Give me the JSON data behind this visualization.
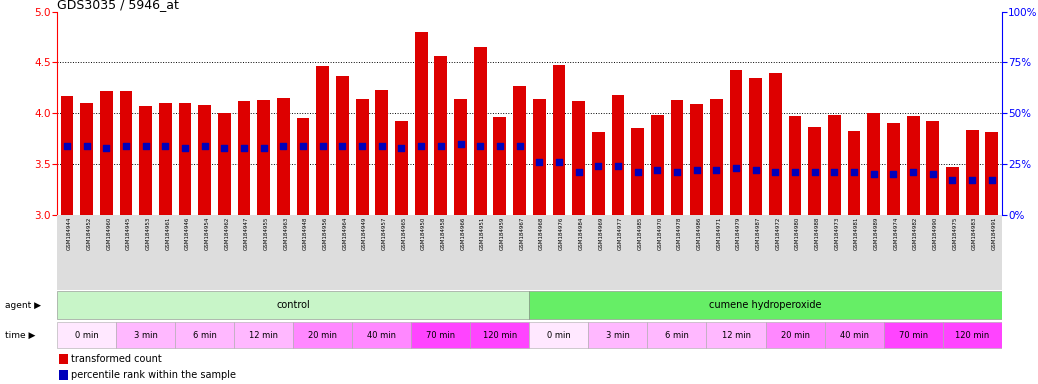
{
  "title": "GDS3035 / 5946_at",
  "ylim_left": [
    3.0,
    5.0
  ],
  "ylim_right": [
    0,
    100
  ],
  "yticks_left": [
    3.0,
    3.5,
    4.0,
    4.5,
    5.0
  ],
  "yticks_right": [
    0,
    25,
    50,
    75,
    100
  ],
  "bar_color": "#DD0000",
  "blue_color": "#0000BB",
  "background_color": "#FFFFFF",
  "samples": [
    "GSM184944",
    "GSM184952",
    "GSM184960",
    "GSM184945",
    "GSM184953",
    "GSM184961",
    "GSM184946",
    "GSM184954",
    "GSM184962",
    "GSM184947",
    "GSM184955",
    "GSM184963",
    "GSM184948",
    "GSM184956",
    "GSM184964",
    "GSM184949",
    "GSM184957",
    "GSM184965",
    "GSM184950",
    "GSM184958",
    "GSM184966",
    "GSM184951",
    "GSM184959",
    "GSM184967",
    "GSM184968",
    "GSM184976",
    "GSM184984",
    "GSM184969",
    "GSM184977",
    "GSM184985",
    "GSM184970",
    "GSM184978",
    "GSM184986",
    "GSM184971",
    "GSM184979",
    "GSM184987",
    "GSM184972",
    "GSM184980",
    "GSM184988",
    "GSM184973",
    "GSM184981",
    "GSM184989",
    "GSM184974",
    "GSM184982",
    "GSM184990",
    "GSM184975",
    "GSM184983",
    "GSM184991"
  ],
  "bar_values": [
    4.17,
    4.1,
    4.22,
    4.22,
    4.07,
    4.1,
    4.1,
    4.08,
    4.0,
    4.12,
    4.13,
    4.15,
    3.95,
    4.46,
    4.37,
    4.14,
    4.23,
    3.92,
    4.8,
    4.56,
    4.14,
    4.65,
    3.96,
    4.27,
    4.14,
    4.47,
    4.12,
    3.82,
    4.18,
    3.86,
    3.98,
    4.13,
    4.09,
    4.14,
    4.43,
    4.35,
    4.4,
    3.97,
    3.87,
    3.98,
    3.83,
    4.0,
    3.9,
    3.97,
    3.92,
    3.47,
    3.84,
    3.82
  ],
  "percentile_values": [
    34,
    34,
    33,
    34,
    34,
    34,
    33,
    34,
    33,
    33,
    33,
    34,
    34,
    34,
    34,
    34,
    34,
    33,
    34,
    34,
    35,
    34,
    34,
    34,
    26,
    26,
    21,
    24,
    24,
    21,
    22,
    21,
    22,
    22,
    23,
    22,
    21,
    21,
    21,
    21,
    21,
    20,
    20,
    21,
    20,
    17,
    17,
    17
  ],
  "agent_groups": [
    {
      "label": "control",
      "start": 0,
      "end": 24,
      "color": "#C8F5C8"
    },
    {
      "label": "cumene hydroperoxide",
      "start": 24,
      "end": 48,
      "color": "#66EE66"
    }
  ],
  "time_groups": [
    {
      "label": "0 min",
      "start": 0,
      "end": 3,
      "color": "#FFE8FF"
    },
    {
      "label": "3 min",
      "start": 3,
      "end": 6,
      "color": "#FFB8FF"
    },
    {
      "label": "6 min",
      "start": 6,
      "end": 9,
      "color": "#FFB8FF"
    },
    {
      "label": "12 min",
      "start": 9,
      "end": 12,
      "color": "#FFB8FF"
    },
    {
      "label": "20 min",
      "start": 12,
      "end": 15,
      "color": "#FF88FF"
    },
    {
      "label": "40 min",
      "start": 15,
      "end": 18,
      "color": "#FF88FF"
    },
    {
      "label": "70 min",
      "start": 18,
      "end": 21,
      "color": "#FF44FF"
    },
    {
      "label": "120 min",
      "start": 21,
      "end": 24,
      "color": "#FF44FF"
    },
    {
      "label": "0 min",
      "start": 24,
      "end": 27,
      "color": "#FFE8FF"
    },
    {
      "label": "3 min",
      "start": 27,
      "end": 30,
      "color": "#FFB8FF"
    },
    {
      "label": "6 min",
      "start": 30,
      "end": 33,
      "color": "#FFB8FF"
    },
    {
      "label": "12 min",
      "start": 33,
      "end": 36,
      "color": "#FFB8FF"
    },
    {
      "label": "20 min",
      "start": 36,
      "end": 39,
      "color": "#FF88FF"
    },
    {
      "label": "40 min",
      "start": 39,
      "end": 42,
      "color": "#FF88FF"
    },
    {
      "label": "70 min",
      "start": 42,
      "end": 45,
      "color": "#FF44FF"
    },
    {
      "label": "120 min",
      "start": 45,
      "end": 48,
      "color": "#FF44FF"
    }
  ],
  "legend_items": [
    {
      "label": "transformed count",
      "color": "#DD0000"
    },
    {
      "label": "percentile rank within the sample",
      "color": "#0000BB"
    }
  ]
}
